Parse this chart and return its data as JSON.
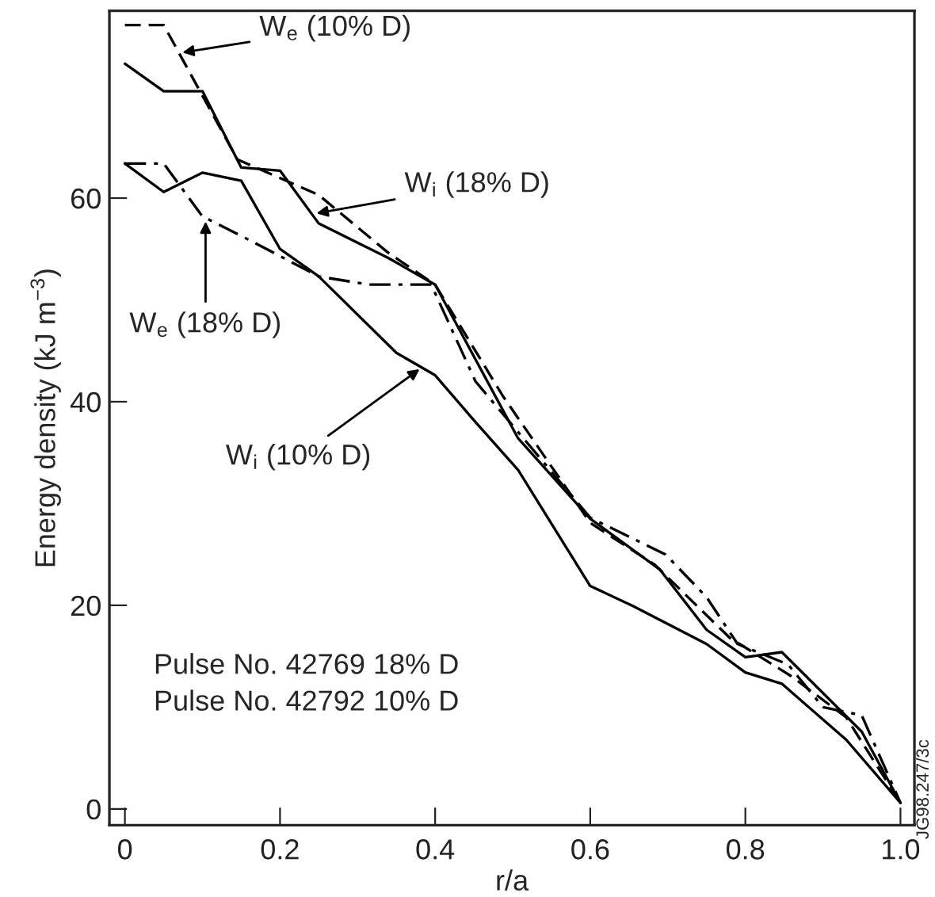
{
  "chart_data": {
    "type": "line",
    "xlabel": "r/a",
    "ylabel": "Energy density (kJ m$^{−3}$)",
    "xlim": [
      -0.02,
      1.018
    ],
    "ylim": [
      -1.6,
      78.4
    ],
    "xticks": [
      0,
      0.2,
      0.4,
      0.6,
      0.8,
      {
        "value": 1.0,
        "label": "1.0"
      }
    ],
    "yticks": [
      0,
      20,
      40,
      60
    ],
    "grid": false,
    "legend": false,
    "marker": "none",
    "series": [
      {
        "color": "#000000",
        "line_style": "dashed",
        "x": [
          0,
          0.05,
          0.145,
          0.25,
          0.34,
          0.4,
          0.487,
          0.6,
          0.683,
          0.78,
          0.86,
          0.93,
          1.0
        ],
        "values": [
          77,
          77,
          63.8,
          60.3,
          54.6,
          51.5,
          40.6,
          28.1,
          24,
          16.8,
          13,
          9,
          0.6
        ]
      },
      {
        "color": "#000000",
        "line_style": "solid",
        "x": [
          0,
          0.05,
          0.1,
          0.15,
          0.2,
          0.25,
          0.34,
          0.4,
          0.507,
          0.6,
          0.69,
          0.75,
          0.8,
          0.847,
          0.95,
          1.0
        ],
        "values": [
          73.2,
          70.5,
          70.5,
          63,
          62.7,
          57.5,
          54.1,
          51.5,
          36.4,
          28.5,
          23.5,
          17.6,
          14.9,
          15.4,
          7.6,
          0.6
        ]
      },
      {
        "color": "#000000",
        "line_style": "dashdot",
        "x": [
          0,
          0.05,
          0.1,
          0.165,
          0.25,
          0.315,
          0.395,
          0.452,
          0.6,
          0.697,
          0.75,
          0.79,
          0.855,
          0.9,
          0.95,
          1.0
        ],
        "values": [
          63.4,
          63.4,
          58.2,
          55.7,
          52.3,
          51.5,
          51.5,
          42,
          28.6,
          25,
          20.8,
          16.2,
          14.2,
          10,
          9.2,
          0.6
        ]
      },
      {
        "color": "#000000",
        "line_style": "solid",
        "x": [
          0,
          0.05,
          0.1,
          0.15,
          0.2,
          0.25,
          0.35,
          0.4,
          0.452,
          0.507,
          0.6,
          0.656,
          0.75,
          0.8,
          0.847,
          0.93,
          1.0
        ],
        "values": [
          63.4,
          60.6,
          62.5,
          61.7,
          55,
          52.3,
          44.8,
          42.6,
          38,
          33.3,
          21.9,
          19.9,
          16.2,
          13.4,
          12.3,
          6.8,
          0.6
        ]
      }
    ],
    "annotations": [
      {
        "text": "W$_{e}$ (10% D)",
        "x": 0.074,
        "y": 74.3
      },
      {
        "text": "W$_{i}$ (18% D)",
        "x": 0.247,
        "y": 58.5
      },
      {
        "text": "W$_{e}$ (18% D)",
        "x": 0.104,
        "y": 57.7
      },
      {
        "text": "W$_{i}$ (10% D)",
        "x": 0.38,
        "y": 43.2
      },
      "Pulse No. 42769 18% D",
      "Pulse No. 42792 10% D",
      "JG98.247/3c"
    ]
  }
}
